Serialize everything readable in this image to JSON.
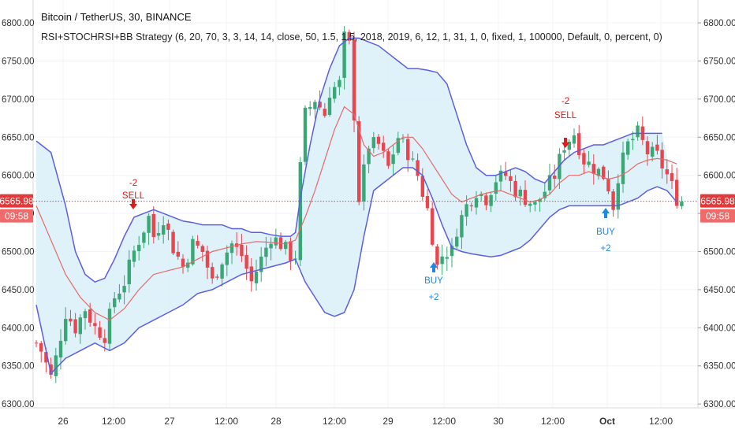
{
  "header": {
    "title": "Bitcoin / TetherUS, 30, BINANCE",
    "subtitle": "RSI+STOCHRSI+BB Strategy (6, 20, 70, 3, 3, 14, 14, close, 50, 1.5, 1.5, 2018, 2019, 6, 12, 1, 31, 1, 0, fixed, 1, 100000, Default, 0, percent, 0)"
  },
  "price_label": {
    "value": "6565.98",
    "countdown": "09:58"
  },
  "signals": [
    {
      "kind": "sell",
      "qty": "-2",
      "label": "SELL"
    },
    {
      "kind": "buy",
      "qty": "+2",
      "label": "BUY"
    },
    {
      "kind": "sell",
      "qty": "-2",
      "label": "SELL"
    },
    {
      "kind": "buy",
      "qty": "+2",
      "label": "BUY"
    }
  ],
  "chart_data": {
    "type": "candlestick",
    "ylim": [
      6295,
      6830
    ],
    "yticks": [
      "6300.00",
      "6350.00",
      "6400.00",
      "6450.00",
      "6500.00",
      "6550.00",
      "6600.00",
      "6650.00",
      "6700.00",
      "6750.00",
      "6800.00"
    ],
    "xticks": [
      "26",
      "12:00",
      "27",
      "12:00",
      "28",
      "12:00",
      "29",
      "12:00",
      "30",
      "12:00",
      "Oct",
      "12:00"
    ],
    "last_price": 6565.98,
    "colors": {
      "up": "#3aa776",
      "down": "#e8454f",
      "band": "#5c5ee0",
      "band_fill": "#dcf0f8",
      "basis": "#e56a6a",
      "sell": "#e21a1a",
      "buy": "#1e88e5",
      "axis_text": "#333333",
      "price_line": "#e04040"
    },
    "price_path": [
      [
        0,
        6380
      ],
      [
        1,
        6370
      ],
      [
        3,
        6335
      ],
      [
        4,
        6360
      ],
      [
        6,
        6420
      ],
      [
        8,
        6400
      ],
      [
        10,
        6425
      ],
      [
        12,
        6400
      ],
      [
        14,
        6390
      ],
      [
        16,
        6440
      ],
      [
        18,
        6460
      ],
      [
        20,
        6500
      ],
      [
        22,
        6530
      ],
      [
        23,
        6545
      ],
      [
        24,
        6520
      ],
      [
        26,
        6545
      ],
      [
        28,
        6505
      ],
      [
        30,
        6480
      ],
      [
        32,
        6510
      ],
      [
        34,
        6500
      ],
      [
        36,
        6460
      ],
      [
        38,
        6490
      ],
      [
        40,
        6510
      ],
      [
        42,
        6495
      ],
      [
        44,
        6460
      ],
      [
        46,
        6490
      ],
      [
        48,
        6520
      ],
      [
        50,
        6510
      ],
      [
        52,
        6495
      ],
      [
        53,
        6495
      ],
      [
        54,
        6610
      ],
      [
        55,
        6680
      ],
      [
        57,
        6700
      ],
      [
        59,
        6680
      ],
      [
        60,
        6710
      ],
      [
        62,
        6720
      ],
      [
        63,
        6780
      ],
      [
        64,
        6770
      ],
      [
        65,
        6680
      ],
      [
        66,
        6570
      ],
      [
        68,
        6640
      ],
      [
        70,
        6640
      ],
      [
        72,
        6610
      ],
      [
        74,
        6650
      ],
      [
        75,
        6640
      ],
      [
        76,
        6630
      ],
      [
        78,
        6600
      ],
      [
        80,
        6555
      ],
      [
        81,
        6520
      ],
      [
        82,
        6480
      ],
      [
        83,
        6495
      ],
      [
        84,
        6500
      ],
      [
        85,
        6500
      ],
      [
        86,
        6530
      ],
      [
        88,
        6560
      ],
      [
        90,
        6580
      ],
      [
        92,
        6570
      ],
      [
        94,
        6595
      ],
      [
        96,
        6600
      ],
      [
        98,
        6580
      ],
      [
        100,
        6570
      ],
      [
        102,
        6560
      ],
      [
        104,
        6580
      ],
      [
        106,
        6600
      ],
      [
        108,
        6640
      ],
      [
        110,
        6655
      ],
      [
        112,
        6620
      ],
      [
        114,
        6610
      ],
      [
        116,
        6600
      ],
      [
        117,
        6585
      ],
      [
        118,
        6560
      ],
      [
        119,
        6600
      ],
      [
        121,
        6640
      ],
      [
        123,
        6655
      ],
      [
        125,
        6630
      ],
      [
        127,
        6625
      ],
      [
        129,
        6600
      ],
      [
        131,
        6570
      ],
      [
        132,
        6566
      ]
    ],
    "bands": {
      "upper": [
        [
          0,
          6645
        ],
        [
          3,
          6630
        ],
        [
          6,
          6560
        ],
        [
          8,
          6500
        ],
        [
          10,
          6470
        ],
        [
          12,
          6460
        ],
        [
          14,
          6465
        ],
        [
          16,
          6490
        ],
        [
          18,
          6520
        ],
        [
          20,
          6545
        ],
        [
          22,
          6550
        ],
        [
          24,
          6555
        ],
        [
          26,
          6550
        ],
        [
          28,
          6545
        ],
        [
          30,
          6540
        ],
        [
          32,
          6538
        ],
        [
          34,
          6535
        ],
        [
          36,
          6535
        ],
        [
          38,
          6535
        ],
        [
          40,
          6530
        ],
        [
          42,
          6530
        ],
        [
          44,
          6525
        ],
        [
          46,
          6525
        ],
        [
          48,
          6522
        ],
        [
          50,
          6520
        ],
        [
          52,
          6520
        ],
        [
          53,
          6525
        ],
        [
          54,
          6570
        ],
        [
          56,
          6640
        ],
        [
          58,
          6700
        ],
        [
          60,
          6740
        ],
        [
          62,
          6770
        ],
        [
          64,
          6780
        ],
        [
          66,
          6780
        ],
        [
          68,
          6775
        ],
        [
          70,
          6770
        ],
        [
          72,
          6760
        ],
        [
          74,
          6750
        ],
        [
          76,
          6740
        ],
        [
          78,
          6740
        ],
        [
          80,
          6738
        ],
        [
          82,
          6735
        ],
        [
          84,
          6720
        ],
        [
          86,
          6680
        ],
        [
          88,
          6640
        ],
        [
          90,
          6610
        ],
        [
          92,
          6600
        ],
        [
          94,
          6600
        ],
        [
          96,
          6605
        ],
        [
          98,
          6610
        ],
        [
          100,
          6605
        ],
        [
          102,
          6595
        ],
        [
          104,
          6590
        ],
        [
          106,
          6605
        ],
        [
          108,
          6620
        ],
        [
          110,
          6630
        ],
        [
          112,
          6635
        ],
        [
          114,
          6640
        ],
        [
          116,
          6640
        ],
        [
          118,
          6645
        ],
        [
          120,
          6650
        ],
        [
          122,
          6655
        ],
        [
          124,
          6655
        ],
        [
          126,
          6655
        ],
        [
          128,
          6655
        ]
      ],
      "basis": [
        [
          0,
          6560
        ],
        [
          3,
          6515
        ],
        [
          6,
          6470
        ],
        [
          9,
          6440
        ],
        [
          12,
          6420
        ],
        [
          15,
          6410
        ],
        [
          18,
          6425
        ],
        [
          21,
          6450
        ],
        [
          24,
          6470
        ],
        [
          27,
          6475
        ],
        [
          30,
          6480
        ],
        [
          33,
          6490
        ],
        [
          36,
          6500
        ],
        [
          39,
          6505
        ],
        [
          42,
          6510
        ],
        [
          45,
          6513
        ],
        [
          48,
          6512
        ],
        [
          51,
          6510
        ],
        [
          53,
          6515
        ],
        [
          55,
          6545
        ],
        [
          57,
          6580
        ],
        [
          59,
          6620
        ],
        [
          61,
          6660
        ],
        [
          63,
          6690
        ],
        [
          65,
          6680
        ],
        [
          67,
          6640
        ],
        [
          69,
          6625
        ],
        [
          71,
          6630
        ],
        [
          73,
          6640
        ],
        [
          75,
          6650
        ],
        [
          77,
          6650
        ],
        [
          79,
          6635
        ],
        [
          81,
          6615
        ],
        [
          83,
          6595
        ],
        [
          85,
          6575
        ],
        [
          87,
          6565
        ],
        [
          89,
          6570
        ],
        [
          91,
          6575
        ],
        [
          93,
          6578
        ],
        [
          95,
          6580
        ],
        [
          97,
          6575
        ],
        [
          99,
          6570
        ],
        [
          101,
          6565
        ],
        [
          103,
          6568
        ],
        [
          105,
          6575
        ],
        [
          107,
          6590
        ],
        [
          109,
          6600
        ],
        [
          111,
          6600
        ],
        [
          113,
          6605
        ],
        [
          115,
          6600
        ],
        [
          117,
          6595
        ],
        [
          119,
          6598
        ],
        [
          121,
          6605
        ],
        [
          123,
          6615
        ],
        [
          125,
          6620
        ],
        [
          127,
          6622
        ],
        [
          129,
          6620
        ],
        [
          131,
          6615
        ]
      ],
      "lower": [
        [
          0,
          6430
        ],
        [
          3,
          6340
        ],
        [
          6,
          6360
        ],
        [
          9,
          6370
        ],
        [
          12,
          6380
        ],
        [
          15,
          6370
        ],
        [
          18,
          6380
        ],
        [
          21,
          6400
        ],
        [
          24,
          6410
        ],
        [
          27,
          6420
        ],
        [
          30,
          6430
        ],
        [
          33,
          6445
        ],
        [
          36,
          6450
        ],
        [
          39,
          6460
        ],
        [
          42,
          6470
        ],
        [
          45,
          6475
        ],
        [
          48,
          6480
        ],
        [
          51,
          6485
        ],
        [
          53,
          6490
        ],
        [
          55,
          6460
        ],
        [
          57,
          6440
        ],
        [
          59,
          6420
        ],
        [
          61,
          6415
        ],
        [
          63,
          6420
        ],
        [
          65,
          6450
        ],
        [
          67,
          6520
        ],
        [
          69,
          6580
        ],
        [
          71,
          6590
        ],
        [
          73,
          6600
        ],
        [
          75,
          6610
        ],
        [
          77,
          6610
        ],
        [
          79,
          6600
        ],
        [
          81,
          6570
        ],
        [
          83,
          6535
        ],
        [
          85,
          6505
        ],
        [
          87,
          6500
        ],
        [
          89,
          6497
        ],
        [
          91,
          6495
        ],
        [
          93,
          6493
        ],
        [
          95,
          6495
        ],
        [
          97,
          6500
        ],
        [
          99,
          6505
        ],
        [
          101,
          6515
        ],
        [
          103,
          6530
        ],
        [
          105,
          6545
        ],
        [
          107,
          6555
        ],
        [
          109,
          6560
        ],
        [
          111,
          6560
        ],
        [
          113,
          6560
        ],
        [
          115,
          6560
        ],
        [
          117,
          6560
        ],
        [
          119,
          6560
        ],
        [
          121,
          6565
        ],
        [
          123,
          6570
        ],
        [
          125,
          6580
        ],
        [
          127,
          6585
        ],
        [
          129,
          6580
        ],
        [
          131,
          6565
        ]
      ]
    }
  }
}
